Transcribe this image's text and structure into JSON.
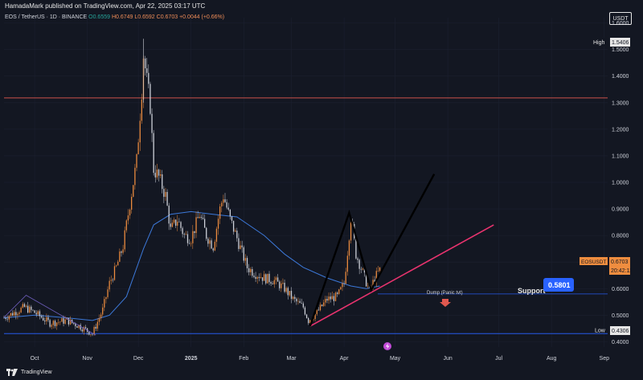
{
  "header": {
    "publish_line": "HamadaMark published on TradingView.com, Apr 22, 2025 03:17 UTC",
    "symbol_line": "EOS / TetherUS · 1D · BINANCE",
    "o": "O0.6559",
    "h": "H0.6749",
    "l": "L0.6592",
    "c": "C0.6703",
    "change": "+0.0044 (+0.66%)"
  },
  "currency_button": "USDT",
  "footer": {
    "brand": "TradingView"
  },
  "markers": {
    "high_label": "High",
    "high_value": "1.5406",
    "low_label": "Low",
    "low_value": "0.4306",
    "symbol_tag": "EOSUSDT",
    "last_price": "0.6703",
    "countdown": "20:42:11"
  },
  "annotations": {
    "support_label": "Support",
    "support_value": "0.5801",
    "dump_label": "Dump (Panic tvt)"
  },
  "colors": {
    "background": "#131722",
    "up": "#ef8d3f",
    "down": "#d1d4dc",
    "ma": "#3c78d8",
    "resistance": "#e0584f",
    "trendline": "#e8336e",
    "support": "#2962ff"
  },
  "chart_data": {
    "type": "line",
    "y_axis_ticks": [
      "1.6000",
      "1.5000",
      "1.4000",
      "1.3000",
      "1.2000",
      "1.1000",
      "1.0000",
      "0.9000",
      "0.8000",
      "0.7000",
      "0.6000",
      "0.5000",
      "0.4000"
    ],
    "x_axis_ticks": [
      "Oct",
      "Nov",
      "Dec",
      "2025",
      "Feb",
      "Mar",
      "Apr",
      "May",
      "Jun",
      "Jul",
      "Aug",
      "Sep"
    ],
    "ylim": [
      0.38,
      1.62
    ],
    "series": [
      {
        "values": [
          [
            "2024-09-13",
            0.49
          ],
          [
            "2024-09-25",
            0.53
          ],
          [
            "2024-10-01",
            0.51
          ],
          [
            "2024-10-10",
            0.47
          ],
          [
            "2024-10-20",
            0.48
          ],
          [
            "2024-10-27",
            0.46
          ],
          [
            "2024-11-04",
            0.43
          ],
          [
            "2024-11-10",
            0.52
          ],
          [
            "2024-11-14",
            0.62
          ],
          [
            "2024-11-18",
            0.68
          ],
          [
            "2024-11-22",
            0.76
          ],
          [
            "2024-11-26",
            0.92
          ],
          [
            "2024-11-30",
            1.08
          ],
          [
            "2024-12-03",
            1.35
          ],
          [
            "2024-12-04",
            1.48
          ],
          [
            "2024-12-06",
            1.38
          ],
          [
            "2024-12-08",
            1.29
          ],
          [
            "2024-12-10",
            1.05
          ],
          [
            "2024-12-13",
            1.02
          ],
          [
            "2024-12-17",
            0.95
          ],
          [
            "2024-12-20",
            0.82
          ],
          [
            "2024-12-24",
            0.86
          ],
          [
            "2024-12-28",
            0.8
          ],
          [
            "2025-01-01",
            0.79
          ],
          [
            "2025-01-06",
            0.88
          ],
          [
            "2025-01-10",
            0.8
          ],
          [
            "2025-01-14",
            0.76
          ],
          [
            "2025-01-18",
            0.9
          ],
          [
            "2025-01-20",
            0.95
          ],
          [
            "2025-01-24",
            0.86
          ],
          [
            "2025-01-28",
            0.79
          ],
          [
            "2025-02-03",
            0.68
          ],
          [
            "2025-02-07",
            0.66
          ],
          [
            "2025-02-13",
            0.64
          ],
          [
            "2025-02-19",
            0.63
          ],
          [
            "2025-02-25",
            0.6
          ],
          [
            "2025-03-02",
            0.56
          ],
          [
            "2025-03-08",
            0.53
          ],
          [
            "2025-03-11",
            0.48
          ],
          [
            "2025-03-16",
            0.51
          ],
          [
            "2025-03-22",
            0.56
          ],
          [
            "2025-03-28",
            0.57
          ],
          [
            "2025-04-01",
            0.62
          ],
          [
            "2025-04-03",
            0.74
          ],
          [
            "2025-04-05",
            0.87
          ],
          [
            "2025-04-08",
            0.73
          ],
          [
            "2025-04-12",
            0.66
          ],
          [
            "2025-04-16",
            0.59
          ],
          [
            "2025-04-19",
            0.64
          ],
          [
            "2025-04-22",
            0.67
          ]
        ]
      },
      {
        "values": [
          [
            "2024-09-13",
            0.49
          ],
          [
            "2024-10-01",
            0.5
          ],
          [
            "2024-10-20",
            0.49
          ],
          [
            "2024-11-04",
            0.48
          ],
          [
            "2024-11-14",
            0.5
          ],
          [
            "2024-11-24",
            0.57
          ],
          [
            "2024-12-04",
            0.75
          ],
          [
            "2024-12-10",
            0.84
          ],
          [
            "2024-12-20",
            0.88
          ],
          [
            "2025-01-01",
            0.89
          ],
          [
            "2025-01-14",
            0.88
          ],
          [
            "2025-01-28",
            0.87
          ],
          [
            "2025-02-13",
            0.8
          ],
          [
            "2025-02-25",
            0.73
          ],
          [
            "2025-03-08",
            0.68
          ],
          [
            "2025-03-22",
            0.64
          ],
          [
            "2025-04-05",
            0.61
          ],
          [
            "2025-04-14",
            0.6
          ],
          [
            "2025-04-22",
            0.61
          ]
        ]
      }
    ],
    "lines": [
      {
        "type": "horizontal",
        "value": 1.3178
      },
      {
        "type": "horizontal",
        "value": 0.5801
      },
      {
        "type": "horizontal",
        "value": 0.4306
      },
      {
        "type": "trendline",
        "from": [
          "2025-03-12",
          0.4586
        ],
        "to": [
          "2025-06-28",
          0.84
        ]
      },
      {
        "type": "zigzag",
        "points": [
          [
            "2025-03-12",
            0.4586
          ],
          [
            "2025-04-04",
            0.8853
          ],
          [
            "2025-04-17",
            0.5951
          ],
          [
            "2025-05-24",
            1.0313
          ]
        ]
      }
    ],
    "annotations": [
      {
        "text": "Support",
        "value": 0.5801
      },
      {
        "text": "Dump (Panic tvt)",
        "x": "2025-05-01"
      }
    ]
  }
}
